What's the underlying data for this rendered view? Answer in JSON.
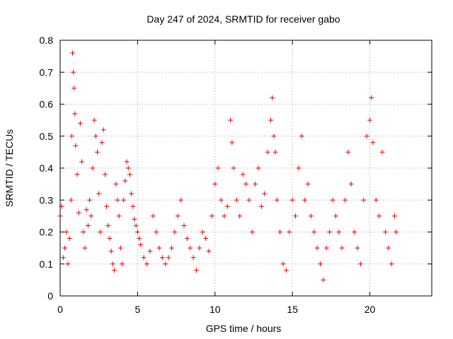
{
  "chart_data": {
    "type": "scatter",
    "title": "Day 247 of 2024, SRMTID for receiver gabo",
    "xlabel": "GPS time / hours",
    "ylabel": "SRMTID / TECUs",
    "xlim": [
      0,
      24
    ],
    "ylim": [
      0,
      0.8
    ],
    "xticks": [
      0,
      5,
      10,
      15,
      20
    ],
    "xtick_labels": [
      "0",
      "5",
      "10",
      "15",
      "20"
    ],
    "yticks": [
      0,
      0.1,
      0.2,
      0.3,
      0.4,
      0.5,
      0.6,
      0.7,
      0.8
    ],
    "ytick_labels": [
      "0",
      "0.1",
      "0.2",
      "0.3",
      "0.4",
      "0.5",
      "0.6",
      "0.7",
      "0.8"
    ],
    "grid": true,
    "marker": "+",
    "color": "#e00000",
    "series": [
      {
        "name": "SRMTID",
        "points": [
          [
            0.0,
            0.25
          ],
          [
            0.1,
            0.28
          ],
          [
            0.2,
            0.12
          ],
          [
            0.3,
            0.15
          ],
          [
            0.4,
            0.2
          ],
          [
            0.5,
            0.1
          ],
          [
            0.6,
            0.18
          ],
          [
            0.7,
            0.3
          ],
          [
            0.75,
            0.5
          ],
          [
            0.8,
            0.76
          ],
          [
            0.85,
            0.7
          ],
          [
            0.9,
            0.65
          ],
          [
            0.95,
            0.57
          ],
          [
            1.0,
            0.47
          ],
          [
            1.1,
            0.38
          ],
          [
            1.2,
            0.26
          ],
          [
            1.3,
            0.54
          ],
          [
            1.4,
            0.42
          ],
          [
            1.5,
            0.2
          ],
          [
            1.6,
            0.15
          ],
          [
            1.7,
            0.27
          ],
          [
            1.8,
            0.22
          ],
          [
            1.9,
            0.3
          ],
          [
            2.0,
            0.25
          ],
          [
            2.1,
            0.4
          ],
          [
            2.2,
            0.55
          ],
          [
            2.3,
            0.5
          ],
          [
            2.4,
            0.45
          ],
          [
            2.5,
            0.32
          ],
          [
            2.6,
            0.2
          ],
          [
            2.7,
            0.48
          ],
          [
            2.8,
            0.52
          ],
          [
            2.9,
            0.38
          ],
          [
            3.0,
            0.28
          ],
          [
            3.1,
            0.22
          ],
          [
            3.2,
            0.18
          ],
          [
            3.3,
            0.14
          ],
          [
            3.4,
            0.1
          ],
          [
            3.5,
            0.08
          ],
          [
            3.6,
            0.35
          ],
          [
            3.7,
            0.3
          ],
          [
            3.8,
            0.25
          ],
          [
            3.9,
            0.15
          ],
          [
            4.0,
            0.1
          ],
          [
            4.1,
            0.3
          ],
          [
            4.2,
            0.36
          ],
          [
            4.3,
            0.42
          ],
          [
            4.4,
            0.4
          ],
          [
            4.5,
            0.38
          ],
          [
            4.6,
            0.32
          ],
          [
            4.7,
            0.28
          ],
          [
            4.8,
            0.24
          ],
          [
            4.9,
            0.22
          ],
          [
            5.0,
            0.2
          ],
          [
            5.1,
            0.18
          ],
          [
            5.2,
            0.16
          ],
          [
            5.4,
            0.12
          ],
          [
            5.6,
            0.1
          ],
          [
            5.8,
            0.14
          ],
          [
            6.0,
            0.25
          ],
          [
            6.2,
            0.2
          ],
          [
            6.4,
            0.15
          ],
          [
            6.6,
            0.12
          ],
          [
            6.8,
            0.1
          ],
          [
            7.0,
            0.12
          ],
          [
            7.2,
            0.15
          ],
          [
            7.4,
            0.2
          ],
          [
            7.6,
            0.25
          ],
          [
            7.8,
            0.3
          ],
          [
            8.0,
            0.22
          ],
          [
            8.2,
            0.18
          ],
          [
            8.4,
            0.15
          ],
          [
            8.6,
            0.12
          ],
          [
            8.8,
            0.08
          ],
          [
            9.0,
            0.15
          ],
          [
            9.2,
            0.2
          ],
          [
            9.4,
            0.18
          ],
          [
            9.6,
            0.14
          ],
          [
            9.8,
            0.25
          ],
          [
            10.0,
            0.35
          ],
          [
            10.2,
            0.4
          ],
          [
            10.4,
            0.3
          ],
          [
            10.6,
            0.25
          ],
          [
            10.8,
            0.28
          ],
          [
            11.0,
            0.55
          ],
          [
            11.1,
            0.48
          ],
          [
            11.2,
            0.4
          ],
          [
            11.4,
            0.3
          ],
          [
            11.6,
            0.25
          ],
          [
            11.8,
            0.38
          ],
          [
            12.0,
            0.35
          ],
          [
            12.2,
            0.3
          ],
          [
            12.4,
            0.2
          ],
          [
            12.6,
            0.35
          ],
          [
            12.8,
            0.4
          ],
          [
            13.0,
            0.28
          ],
          [
            13.2,
            0.32
          ],
          [
            13.4,
            0.45
          ],
          [
            13.6,
            0.55
          ],
          [
            13.7,
            0.62
          ],
          [
            13.8,
            0.5
          ],
          [
            13.9,
            0.45
          ],
          [
            14.0,
            0.3
          ],
          [
            14.2,
            0.2
          ],
          [
            14.4,
            0.1
          ],
          [
            14.6,
            0.08
          ],
          [
            14.8,
            0.2
          ],
          [
            15.0,
            0.3
          ],
          [
            15.2,
            0.25
          ],
          [
            15.4,
            0.4
          ],
          [
            15.6,
            0.5
          ],
          [
            15.8,
            0.3
          ],
          [
            16.0,
            0.35
          ],
          [
            16.2,
            0.25
          ],
          [
            16.4,
            0.2
          ],
          [
            16.6,
            0.15
          ],
          [
            16.8,
            0.1
          ],
          [
            17.0,
            0.05
          ],
          [
            17.2,
            0.15
          ],
          [
            17.4,
            0.2
          ],
          [
            17.6,
            0.3
          ],
          [
            17.8,
            0.25
          ],
          [
            18.0,
            0.2
          ],
          [
            18.2,
            0.15
          ],
          [
            18.4,
            0.3
          ],
          [
            18.6,
            0.45
          ],
          [
            18.8,
            0.35
          ],
          [
            19.0,
            0.2
          ],
          [
            19.2,
            0.15
          ],
          [
            19.4,
            0.1
          ],
          [
            19.6,
            0.3
          ],
          [
            19.8,
            0.5
          ],
          [
            20.0,
            0.55
          ],
          [
            20.1,
            0.62
          ],
          [
            20.2,
            0.48
          ],
          [
            20.4,
            0.3
          ],
          [
            20.6,
            0.25
          ],
          [
            20.8,
            0.45
          ],
          [
            21.0,
            0.2
          ],
          [
            21.2,
            0.15
          ],
          [
            21.4,
            0.1
          ],
          [
            21.6,
            0.25
          ],
          [
            21.7,
            0.2
          ]
        ]
      }
    ]
  }
}
